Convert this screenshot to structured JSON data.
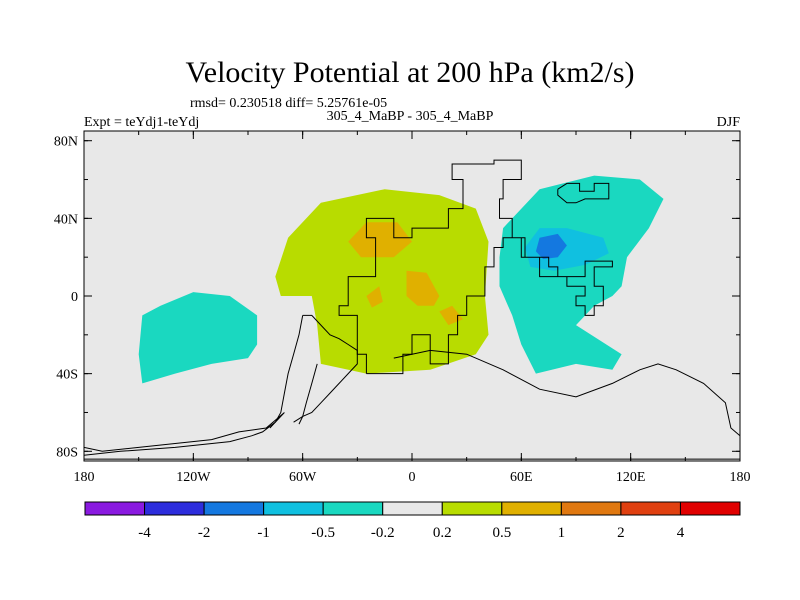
{
  "chart_data": {
    "type": "heatmap",
    "title": "Velocity Potential at 200 hPa (km2/s)",
    "stats_line": "rmsd= 0.230518 diff= 5.25761e-05",
    "left_label": "Expt = teYdj1-teYdj",
    "center_label": "305_4_MaBP - 305_4_MaBP",
    "right_label": "DJF",
    "x_ticks": [
      "180",
      "120W",
      "60W",
      "0",
      "60E",
      "120E",
      "180"
    ],
    "y_ticks": [
      "80N",
      "40N",
      "0",
      "40S",
      "80S"
    ],
    "xlim": [
      -180,
      180
    ],
    "ylim": [
      -85,
      85
    ],
    "colorbar": {
      "levels": [
        "-4",
        "-2",
        "-1",
        "-0.5",
        "-0.2",
        "0.2",
        "0.5",
        "1",
        "2",
        "4"
      ],
      "colors": [
        "#8a1ae0",
        "#2d2ddc",
        "#1478e0",
        "#10c0e0",
        "#1ad8c0",
        "#e8e8e8",
        "#b8dc00",
        "#e0b000",
        "#e07810",
        "#e04010",
        "#e00000"
      ]
    },
    "regions": [
      {
        "name": "central-pacific-negative",
        "level": "-0.2",
        "color": "#1ad8c0",
        "points": [
          [
            -150,
            -30
          ],
          [
            -148,
            -10
          ],
          [
            -138,
            -5
          ],
          [
            -120,
            2
          ],
          [
            -100,
            0
          ],
          [
            -85,
            -10
          ],
          [
            -85,
            -25
          ],
          [
            -90,
            -32
          ],
          [
            -110,
            -35
          ],
          [
            -130,
            -40
          ],
          [
            -148,
            -45
          ]
        ]
      },
      {
        "name": "atlantic-positive",
        "level": "0.2",
        "color": "#b8dc00",
        "points": [
          [
            -75,
            10
          ],
          [
            -68,
            30
          ],
          [
            -50,
            48
          ],
          [
            -15,
            55
          ],
          [
            15,
            52
          ],
          [
            35,
            45
          ],
          [
            42,
            28
          ],
          [
            40,
            0
          ],
          [
            42,
            -20
          ],
          [
            35,
            -30
          ],
          [
            10,
            -38
          ],
          [
            -25,
            -40
          ],
          [
            -50,
            -35
          ],
          [
            -52,
            -15
          ],
          [
            -55,
            0
          ],
          [
            -72,
            0
          ]
        ]
      },
      {
        "name": "atlantic-positive-core-1",
        "level": "0.5",
        "color": "#e0b000",
        "points": [
          [
            -35,
            28
          ],
          [
            -25,
            38
          ],
          [
            -8,
            38
          ],
          [
            0,
            28
          ],
          [
            -10,
            20
          ],
          [
            -28,
            20
          ]
        ]
      },
      {
        "name": "atlantic-positive-core-2",
        "level": "0.5",
        "color": "#e0b000",
        "points": [
          [
            -3,
            13
          ],
          [
            8,
            12
          ],
          [
            15,
            0
          ],
          [
            12,
            -5
          ],
          [
            3,
            -5
          ],
          [
            -3,
            0
          ]
        ]
      },
      {
        "name": "atlantic-positive-core-3",
        "level": "0.5",
        "color": "#e0b000",
        "points": [
          [
            -25,
            0
          ],
          [
            -18,
            5
          ],
          [
            -16,
            -3
          ],
          [
            -22,
            -6
          ]
        ]
      },
      {
        "name": "atlantic-positive-core-4",
        "level": "0.5",
        "color": "#e0b000",
        "points": [
          [
            15,
            -8
          ],
          [
            22,
            -5
          ],
          [
            28,
            -12
          ],
          [
            20,
            -15
          ]
        ]
      },
      {
        "name": "indian-ocean-negative",
        "level": "-0.2",
        "color": "#1ad8c0",
        "points": [
          [
            50,
            35
          ],
          [
            70,
            55
          ],
          [
            100,
            62
          ],
          [
            125,
            60
          ],
          [
            138,
            50
          ],
          [
            130,
            35
          ],
          [
            118,
            20
          ],
          [
            115,
            5
          ],
          [
            110,
            0
          ],
          [
            100,
            -5
          ],
          [
            90,
            -15
          ],
          [
            115,
            -30
          ],
          [
            110,
            -38
          ],
          [
            90,
            -35
          ],
          [
            68,
            -40
          ],
          [
            60,
            -25
          ],
          [
            55,
            -10
          ],
          [
            48,
            5
          ],
          [
            48,
            20
          ]
        ]
      },
      {
        "name": "indian-ocean-negative-core",
        "level": "-0.5",
        "color": "#10c0e0",
        "points": [
          [
            62,
            25
          ],
          [
            70,
            35
          ],
          [
            85,
            35
          ],
          [
            105,
            30
          ],
          [
            108,
            22
          ],
          [
            95,
            16
          ],
          [
            78,
            13
          ],
          [
            65,
            15
          ]
        ]
      },
      {
        "name": "indian-ocean-negative-center",
        "level": "-1",
        "color": "#1478e0",
        "points": [
          [
            68,
            23
          ],
          [
            70,
            30
          ],
          [
            80,
            32
          ],
          [
            85,
            26
          ],
          [
            80,
            20
          ],
          [
            72,
            19
          ]
        ]
      }
    ],
    "coastlines": [
      {
        "name": "north-america-eurasia-coast",
        "points": [
          [
            -25,
            -40
          ],
          [
            -25,
            -30
          ],
          [
            -30,
            -30
          ],
          [
            -30,
            -10
          ],
          [
            -40,
            -10
          ],
          [
            -40,
            -5
          ],
          [
            -35,
            -5
          ],
          [
            -35,
            10
          ],
          [
            -20,
            10
          ],
          [
            -20,
            30
          ],
          [
            -25,
            30
          ],
          [
            -25,
            40
          ],
          [
            -10,
            40
          ],
          [
            -10,
            30
          ],
          [
            0,
            30
          ],
          [
            0,
            35
          ],
          [
            20,
            35
          ],
          [
            20,
            45
          ],
          [
            28,
            45
          ],
          [
            28,
            60
          ],
          [
            22,
            60
          ],
          [
            22,
            68
          ],
          [
            45,
            68
          ],
          [
            45,
            70
          ],
          [
            60,
            70
          ],
          [
            60,
            60
          ],
          [
            50,
            60
          ],
          [
            50,
            50
          ],
          [
            48,
            50
          ],
          [
            48,
            40
          ],
          [
            55,
            40
          ],
          [
            55,
            30
          ],
          [
            62,
            30
          ],
          [
            62,
            20
          ],
          [
            75,
            20
          ],
          [
            75,
            15
          ],
          [
            80,
            15
          ],
          [
            80,
            10
          ],
          [
            95,
            10
          ],
          [
            95,
            18
          ],
          [
            110,
            18
          ],
          [
            110,
            15
          ],
          [
            100,
            15
          ],
          [
            100,
            5
          ],
          [
            105,
            5
          ],
          [
            105,
            -5
          ],
          [
            100,
            -5
          ],
          [
            100,
            -10
          ],
          [
            95,
            -10
          ],
          [
            95,
            -5
          ],
          [
            90,
            -5
          ],
          [
            90,
            0
          ],
          [
            95,
            0
          ],
          [
            95,
            5
          ],
          [
            85,
            5
          ],
          [
            85,
            10
          ],
          [
            70,
            10
          ],
          [
            70,
            20
          ],
          [
            60,
            20
          ],
          [
            60,
            30
          ],
          [
            50,
            30
          ],
          [
            50,
            25
          ],
          [
            45,
            25
          ],
          [
            45,
            15
          ],
          [
            40,
            15
          ],
          [
            40,
            0
          ],
          [
            30,
            0
          ],
          [
            30,
            -10
          ],
          [
            25,
            -10
          ],
          [
            25,
            -20
          ],
          [
            20,
            -20
          ],
          [
            20,
            -35
          ],
          [
            10,
            -35
          ],
          [
            10,
            -20
          ],
          [
            0,
            -20
          ],
          [
            0,
            -30
          ],
          [
            -5,
            -30
          ],
          [
            -5,
            -40
          ],
          [
            -25,
            -40
          ]
        ]
      },
      {
        "name": "south-america-east-coast",
        "points": [
          [
            -60,
            -10
          ],
          [
            -55,
            -10
          ],
          [
            -50,
            -15
          ],
          [
            -45,
            -20
          ],
          [
            -40,
            -22
          ],
          [
            -35,
            -25
          ],
          [
            -30,
            -28
          ],
          [
            -30,
            -35
          ],
          [
            -35,
            -40
          ],
          [
            -40,
            -45
          ],
          [
            -45,
            -50
          ],
          [
            -50,
            -55
          ],
          [
            -55,
            -60
          ],
          [
            -60,
            -62
          ],
          [
            -65,
            -65
          ]
        ]
      },
      {
        "name": "south-america-west-coast",
        "points": [
          [
            -60,
            -10
          ],
          [
            -62,
            -20
          ],
          [
            -65,
            -30
          ],
          [
            -68,
            -40
          ],
          [
            -70,
            -50
          ],
          [
            -72,
            -60
          ],
          [
            -75,
            -65
          ],
          [
            -78,
            -68
          ]
        ]
      },
      {
        "name": "antarctic-peninsula",
        "points": [
          [
            -52,
            -35
          ],
          [
            -55,
            -45
          ],
          [
            -58,
            -55
          ],
          [
            -60,
            -62
          ],
          [
            -62,
            -66
          ]
        ]
      },
      {
        "name": "antarctica-coast",
        "points": [
          [
            -180,
            -78
          ],
          [
            -170,
            -80
          ],
          [
            -150,
            -78
          ],
          [
            -130,
            -76
          ],
          [
            -110,
            -74
          ],
          [
            -95,
            -70
          ],
          [
            -80,
            -68
          ],
          [
            -70,
            -60
          ],
          [
            -75,
            -65
          ],
          [
            -82,
            -70
          ],
          [
            -88,
            -72
          ],
          [
            -100,
            -75
          ],
          [
            -130,
            -78
          ],
          [
            -160,
            -80
          ],
          [
            -180,
            -82
          ]
        ]
      },
      {
        "name": "southern-ocean-ridge",
        "points": [
          [
            -10,
            -32
          ],
          [
            10,
            -28
          ],
          [
            30,
            -30
          ],
          [
            50,
            -38
          ],
          [
            70,
            -48
          ],
          [
            90,
            -52
          ],
          [
            110,
            -45
          ],
          [
            125,
            -38
          ],
          [
            135,
            -35
          ],
          [
            145,
            -38
          ],
          [
            160,
            -45
          ],
          [
            172,
            -55
          ],
          [
            175,
            -68
          ],
          [
            180,
            -72
          ]
        ]
      },
      {
        "name": "antarctica-south-rim",
        "points": [
          [
            -180,
            -84
          ],
          [
            -120,
            -84
          ],
          [
            -60,
            -84
          ],
          [
            0,
            -84
          ],
          [
            60,
            -84
          ],
          [
            120,
            -84
          ],
          [
            180,
            -84
          ]
        ]
      },
      {
        "name": "arabia-outline",
        "points": [
          [
            80,
            55
          ],
          [
            85,
            58
          ],
          [
            92,
            58
          ],
          [
            92,
            54
          ],
          [
            100,
            54
          ],
          [
            100,
            58
          ],
          [
            108,
            58
          ],
          [
            108,
            50
          ],
          [
            95,
            50
          ],
          [
            90,
            48
          ],
          [
            85,
            48
          ],
          [
            80,
            52
          ],
          [
            80,
            55
          ]
        ]
      }
    ]
  }
}
